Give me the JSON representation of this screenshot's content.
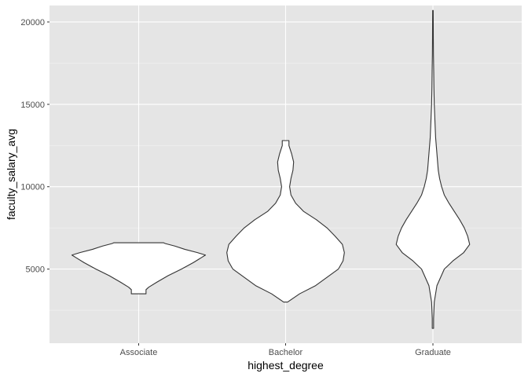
{
  "chart_data": {
    "type": "violin",
    "xlabel": "highest_degree",
    "ylabel": "faculty_salary_avg",
    "categories": [
      "Associate",
      "Bachelor",
      "Graduate"
    ],
    "ylim": [
      500,
      21000
    ],
    "yticks": [
      5000,
      10000,
      15000,
      20000
    ],
    "grid": true,
    "colors": {
      "panel": "#e5e5e5",
      "grid_major": "#ffffff",
      "violin_fill": "#ffffff",
      "violin_outline": "#333333"
    },
    "series": [
      {
        "category": "Associate",
        "min": 3500,
        "max": 6600,
        "profile": [
          [
            3500,
            0.11
          ],
          [
            3620,
            0.11
          ],
          [
            3750,
            0.11
          ],
          [
            3900,
            0.15
          ],
          [
            4200,
            0.27
          ],
          [
            4600,
            0.44
          ],
          [
            5000,
            0.64
          ],
          [
            5400,
            0.82
          ],
          [
            5700,
            0.94
          ],
          [
            5850,
            1.0
          ],
          [
            6000,
            0.88
          ],
          [
            6200,
            0.69
          ],
          [
            6400,
            0.54
          ],
          [
            6550,
            0.4
          ],
          [
            6600,
            0.37
          ]
        ]
      },
      {
        "category": "Bachelor",
        "min": 3000,
        "max": 12800,
        "profile": [
          [
            3000,
            0.03
          ],
          [
            3500,
            0.21
          ],
          [
            4000,
            0.45
          ],
          [
            4500,
            0.62
          ],
          [
            5000,
            0.79
          ],
          [
            5500,
            0.86
          ],
          [
            6000,
            0.88
          ],
          [
            6500,
            0.85
          ],
          [
            7000,
            0.74
          ],
          [
            7500,
            0.62
          ],
          [
            8000,
            0.46
          ],
          [
            8500,
            0.27
          ],
          [
            9000,
            0.15
          ],
          [
            9500,
            0.08
          ],
          [
            10000,
            0.06
          ],
          [
            10500,
            0.08
          ],
          [
            11000,
            0.11
          ],
          [
            11500,
            0.12
          ],
          [
            12000,
            0.09
          ],
          [
            12500,
            0.05
          ],
          [
            12800,
            0.05
          ]
        ]
      },
      {
        "category": "Graduate",
        "min": 1400,
        "max": 20700,
        "profile": [
          [
            1400,
            0.01
          ],
          [
            2000,
            0.01
          ],
          [
            3000,
            0.02
          ],
          [
            4000,
            0.06
          ],
          [
            5000,
            0.17
          ],
          [
            5500,
            0.3
          ],
          [
            6000,
            0.46
          ],
          [
            6500,
            0.55
          ],
          [
            7000,
            0.52
          ],
          [
            7500,
            0.47
          ],
          [
            8000,
            0.4
          ],
          [
            8500,
            0.32
          ],
          [
            9000,
            0.24
          ],
          [
            9500,
            0.17
          ],
          [
            10000,
            0.13
          ],
          [
            10500,
            0.1
          ],
          [
            11000,
            0.08
          ],
          [
            12000,
            0.06
          ],
          [
            13000,
            0.04
          ],
          [
            14000,
            0.03
          ],
          [
            15000,
            0.02
          ],
          [
            16000,
            0.015
          ],
          [
            17000,
            0.012
          ],
          [
            18000,
            0.008
          ],
          [
            19000,
            0.006
          ],
          [
            20000,
            0.005
          ],
          [
            20700,
            0.004
          ]
        ]
      }
    ]
  }
}
